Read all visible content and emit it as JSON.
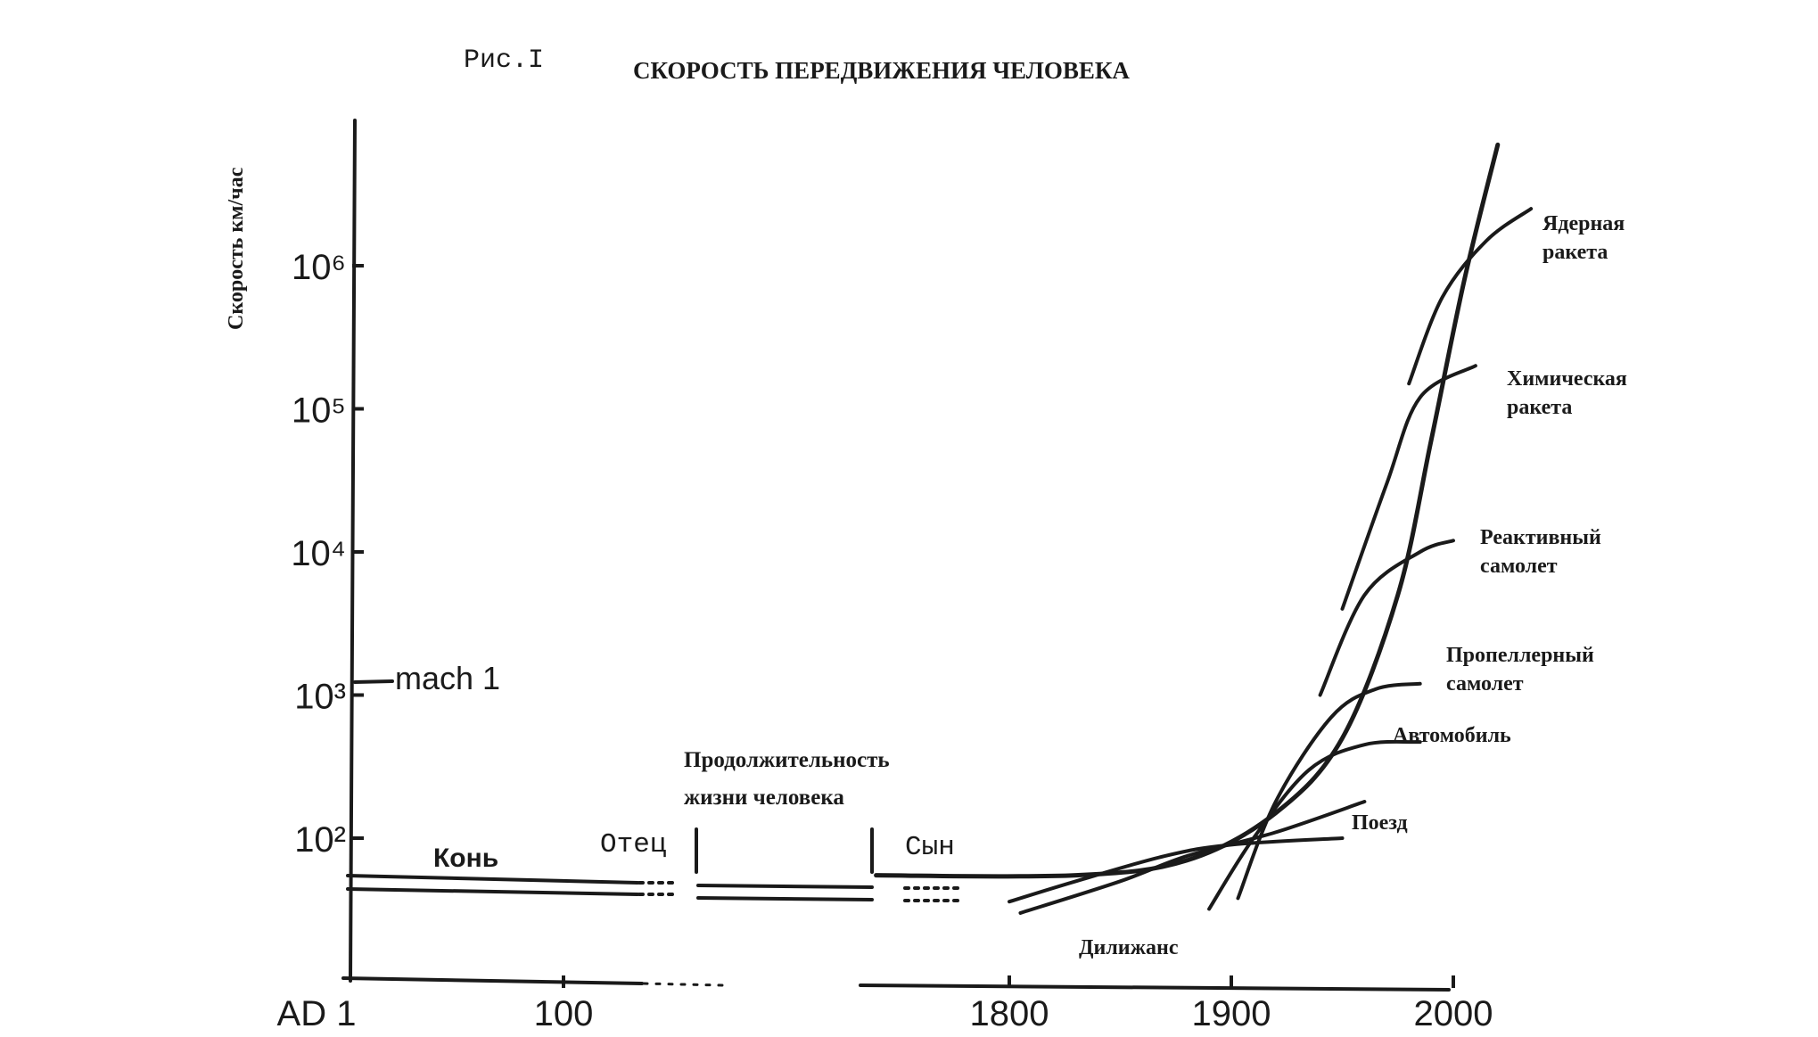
{
  "fig_label": "Рис.I",
  "chart_data": {
    "type": "line",
    "title": "СКОРОСТЬ ПЕРЕДВИЖЕНИЯ ЧЕЛОВЕКА",
    "ylabel": "Скорость км/час",
    "yscale": "log",
    "ylim": [
      20,
      1000000000
    ],
    "y_ticks": [
      {
        "value": 100,
        "label": "10²"
      },
      {
        "value": 1000,
        "label": "10³"
      },
      {
        "value": 10000,
        "label": "10⁴"
      },
      {
        "value": 100000,
        "label": "10⁵"
      },
      {
        "value": 1000000,
        "label": "10⁶"
      }
    ],
    "x_ticks": [
      {
        "value": 1,
        "label": "AD 1"
      },
      {
        "value": 100,
        "label": "100"
      },
      {
        "value": 1800,
        "label": "1800"
      },
      {
        "value": 1900,
        "label": "1900"
      },
      {
        "value": 2000,
        "label": "2000"
      }
    ],
    "x_axis_broken": true,
    "reference": {
      "label": "mach 1",
      "value": 1200
    },
    "annotations": {
      "horse": "Конь",
      "father": "Отец",
      "son": "Сын",
      "lifespan_line1": "Продолжительность",
      "lifespan_line2": "жизни человека"
    },
    "series": [
      {
        "name": "Дилижанс",
        "points": [
          [
            1805,
            30
          ],
          [
            1850,
            50
          ],
          [
            1880,
            75
          ],
          [
            1920,
            110
          ],
          [
            1960,
            180
          ]
        ]
      },
      {
        "name": "Поезд",
        "points": [
          [
            1800,
            36
          ],
          [
            1830,
            50
          ],
          [
            1870,
            75
          ],
          [
            1900,
            90
          ],
          [
            1950,
            100
          ]
        ]
      },
      {
        "name": "Автомобиль",
        "points": [
          [
            1890,
            32
          ],
          [
            1910,
            100
          ],
          [
            1935,
            300
          ],
          [
            1960,
            450
          ],
          [
            1985,
            470
          ]
        ]
      },
      {
        "name": "Пропеллерный самолет",
        "points": [
          [
            1903,
            38
          ],
          [
            1920,
            180
          ],
          [
            1945,
            700
          ],
          [
            1965,
            1100
          ],
          [
            1985,
            1200
          ]
        ]
      },
      {
        "name": "Реактивный самолет",
        "points": [
          [
            1940,
            1000
          ],
          [
            1960,
            5000
          ],
          [
            1985,
            10000
          ],
          [
            2000,
            12000
          ]
        ]
      },
      {
        "name": "Химическая ракета",
        "points": [
          [
            1950,
            4000
          ],
          [
            1970,
            30000
          ],
          [
            1985,
            120000
          ],
          [
            2010,
            200000
          ]
        ]
      },
      {
        "name": "Ядерная ракета",
        "points": [
          [
            1980,
            150000
          ],
          [
            1995,
            600000
          ],
          [
            2015,
            1500000
          ],
          [
            2035,
            2500000
          ]
        ]
      },
      {
        "name": "",
        "points": [
          [
            1740,
            55
          ],
          [
            1830,
            55
          ],
          [
            1880,
            70
          ],
          [
            1920,
            150
          ],
          [
            1950,
            500
          ],
          [
            1975,
            5000
          ],
          [
            1990,
            60000
          ],
          [
            2005,
            800000
          ],
          [
            2020,
            7000000
          ]
        ]
      }
    ]
  }
}
